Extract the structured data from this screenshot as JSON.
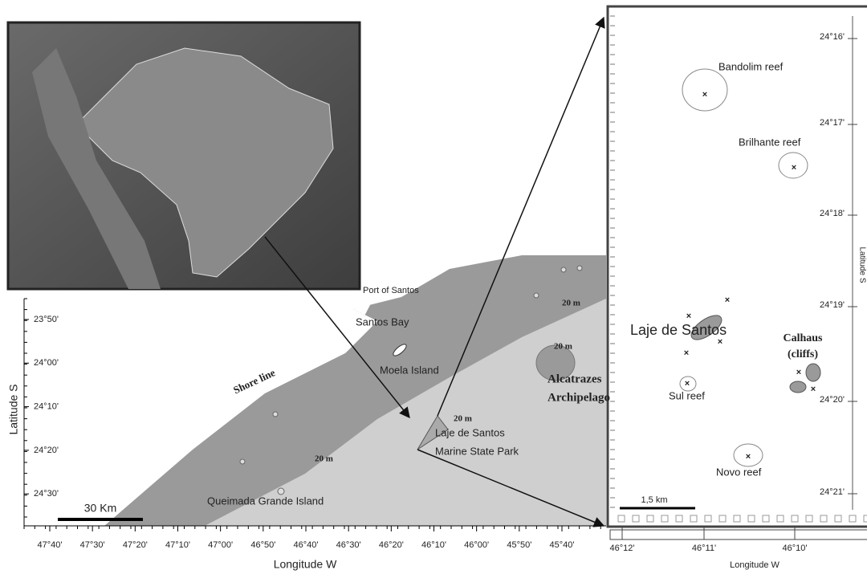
{
  "main_map": {
    "labels": [
      "Port of Santos",
      "Santos Bay",
      "Moela Island",
      "Shore line",
      "Alcatrazes",
      "Archipelago",
      "Laje de Santos",
      "Marine State Park",
      "Queimada Grande Island",
      "20 m",
      "20 m",
      "20 m",
      "20 m"
    ],
    "scale_bar": "30 Km",
    "x_ticks": [
      "47°40'",
      "47°30'",
      "47°20'",
      "47°10'",
      "47°00'",
      "46°50'",
      "46°40'",
      "46°30'",
      "46°20'",
      "46°10'",
      "46°00'",
      "45°50'",
      "45°40'"
    ],
    "y_ticks": [
      "23°50'",
      "24°00'",
      "24°10'",
      "24°20'",
      "24°30'"
    ],
    "x_axis_title": "Longitude W",
    "y_axis_title": "Latitude S"
  },
  "detail_map": {
    "labels": [
      "Bandolim reef",
      "Brilhante reef",
      "Laje de Santos",
      "Calhaus",
      "(cliffs)",
      "Sul reef",
      "Novo reef"
    ],
    "scale_bar": "1,5 km",
    "x_ticks": [
      "46°12'",
      "46°11'",
      "46°10'"
    ],
    "y_ticks": [
      "24°16'",
      "24°17'",
      "24°18'",
      "24°19'",
      "24°20'",
      "24°21'"
    ],
    "x_axis_title": "Longitude W",
    "y_axis_title": "Latitude S"
  }
}
